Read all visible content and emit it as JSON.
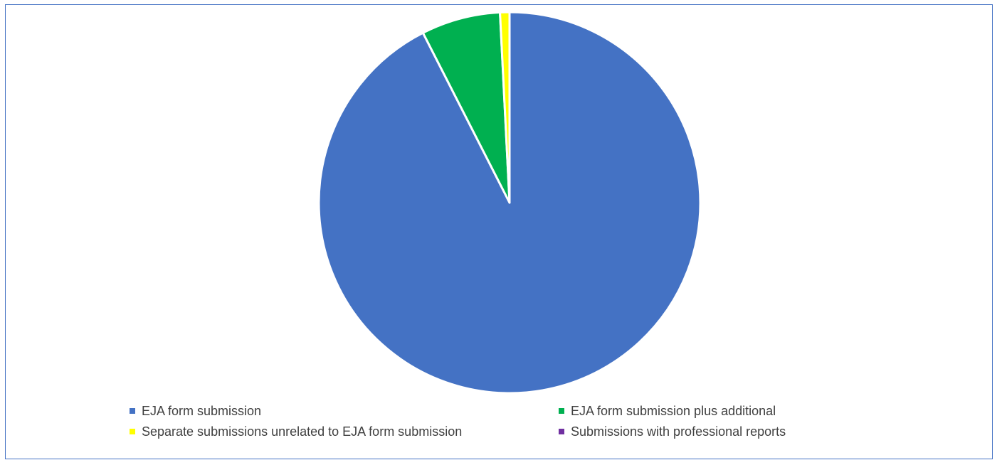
{
  "chart_data": {
    "type": "pie",
    "title": "",
    "slices": [
      {
        "label": "EJA form submission",
        "value": 92.5,
        "color": "#4472c4"
      },
      {
        "label": "EJA form submission plus additional",
        "value": 6.7,
        "color": "#00b050"
      },
      {
        "label": "Separate submissions unrelated to EJA form submission",
        "value": 0.8,
        "color": "#ffff00"
      },
      {
        "label": "Submissions with professional reports",
        "value": 0.0,
        "color": "#7030a0"
      }
    ],
    "legend_position": "bottom",
    "slice_border_color": "#ffffff"
  }
}
